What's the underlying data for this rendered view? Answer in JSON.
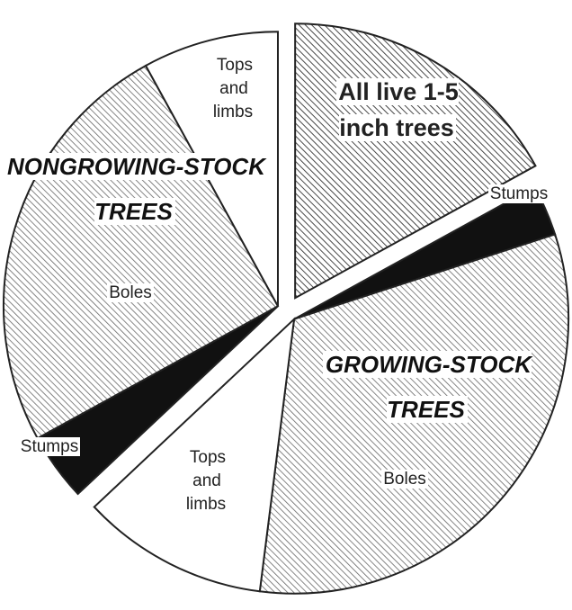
{
  "chart_data": {
    "type": "pie",
    "categories": [
      "All live 1-5 inch trees",
      "Stumps",
      "Boles",
      "Tops and limbs",
      "Stumps",
      "Boles",
      "Tops and limbs"
    ],
    "values": [
      17,
      3,
      32,
      11,
      4,
      25,
      8
    ],
    "group_labels": [
      "GROWING-STOCK TREES",
      "NONGROWING-STOCK TREES"
    ]
  }
}
